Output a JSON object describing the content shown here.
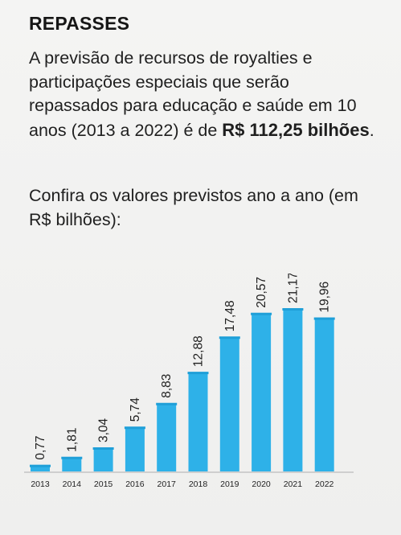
{
  "header": {
    "title": "REPASSES"
  },
  "intro": {
    "text": "A previsão de recursos de royalties e participações especiais que serão repassados para educação e saúde em 10 anos (2013 a 2022) é de",
    "amount": "R$ 112,25 bilhões",
    "end": "."
  },
  "prompt": {
    "text": "Confira os valores previstos ano a ano (em R$ bilhões):"
  },
  "colors": {
    "bar": "#2eb1e8",
    "text": "#1f1f1f",
    "background": "#f1f1f0"
  },
  "chart_data": {
    "type": "bar",
    "title": "",
    "xlabel": "",
    "ylabel": "",
    "categories": [
      "2013",
      "2014",
      "2015",
      "2016",
      "2017",
      "2018",
      "2019",
      "2020",
      "2021",
      "2022"
    ],
    "values": [
      0.77,
      1.81,
      3.04,
      5.74,
      8.83,
      12.88,
      17.48,
      20.57,
      21.17,
      19.96
    ],
    "value_labels": [
      "0,77",
      "1,81",
      "3,04",
      "5,74",
      "8,83",
      "12,88",
      "17,48",
      "20,57",
      "21,17",
      "19,96"
    ],
    "ylim": [
      0,
      21.17
    ],
    "grid": false,
    "legend": "none"
  }
}
